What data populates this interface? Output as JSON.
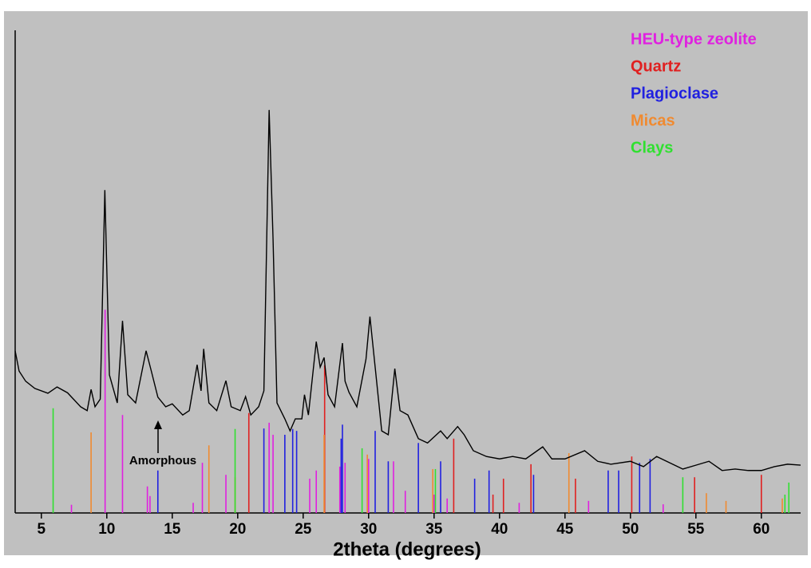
{
  "chart_data": {
    "type": "line",
    "xlabel": "2theta (degrees)",
    "xlim": [
      3,
      63
    ],
    "xticks": [
      5,
      10,
      15,
      20,
      25,
      30,
      35,
      40,
      45,
      50,
      55,
      60
    ],
    "ylim": [
      0,
      100
    ],
    "color": "#000000",
    "legend": "top-right",
    "annotation": "Amorphous",
    "x": [
      3.0,
      3.3,
      3.8,
      4.5,
      5.5,
      6.2,
      7.0,
      8.0,
      8.5,
      8.8,
      9.1,
      9.5,
      9.85,
      10.2,
      10.8,
      11.2,
      11.6,
      12.2,
      13.0,
      13.4,
      13.9,
      14.5,
      15.0,
      15.8,
      16.3,
      16.9,
      17.2,
      17.4,
      17.8,
      18.4,
      19.1,
      19.5,
      20.2,
      20.6,
      21.0,
      21.6,
      22.0,
      22.4,
      22.7,
      23.0,
      23.6,
      24.0,
      24.4,
      24.9,
      25.1,
      25.4,
      26.0,
      26.3,
      26.6,
      26.9,
      27.4,
      28.0,
      28.2,
      28.5,
      29.1,
      29.8,
      30.1,
      30.5,
      31.0,
      31.5,
      32.0,
      32.4,
      33.0,
      33.8,
      34.5,
      35.5,
      36.0,
      36.8,
      37.3,
      38.0,
      39.0,
      40.0,
      41.0,
      42.0,
      43.3,
      44.0,
      45.0,
      46.5,
      47.5,
      48.5,
      50.0,
      51.0,
      52.0,
      53.0,
      54.0,
      55.0,
      56.0,
      57.0,
      58.0,
      59.0,
      60.0,
      61.0,
      62.0,
      63.0
    ],
    "values": [
      33.6,
      29.4,
      27.3,
      25.8,
      24.8,
      26.1,
      24.9,
      22.0,
      21.2,
      25.6,
      22.0,
      23.6,
      66.9,
      28.6,
      22.8,
      39.8,
      24.5,
      22.8,
      33.6,
      29.4,
      24.0,
      22.0,
      22.6,
      20.3,
      21.2,
      30.7,
      25.3,
      34.0,
      22.8,
      21.2,
      27.4,
      22.0,
      21.2,
      24.1,
      20.3,
      22.0,
      25.3,
      83.5,
      56.7,
      22.8,
      19.5,
      17.0,
      19.5,
      19.5,
      24.5,
      20.3,
      35.5,
      30.2,
      32.2,
      24.5,
      22.0,
      35.2,
      27.3,
      25.0,
      22.0,
      31.9,
      40.7,
      30.2,
      17.0,
      16.2,
      29.9,
      21.2,
      20.3,
      15.4,
      14.5,
      17.0,
      15.4,
      17.9,
      16.2,
      12.9,
      11.7,
      11.2,
      11.7,
      11.2,
      13.7,
      11.2,
      11.2,
      12.9,
      10.7,
      10.1,
      10.7,
      9.6,
      11.7,
      10.4,
      9.1,
      9.9,
      10.7,
      8.8,
      9.1,
      8.8,
      8.8,
      9.6,
      10.1,
      9.9
    ],
    "series": [
      {
        "name": "HEU-type zeolite",
        "color": "#e020e0",
        "x": [
          7.3,
          9.87,
          11.2,
          13.1,
          13.3,
          16.6,
          17.3,
          19.1,
          22.4,
          22.7,
          25.5,
          26.0,
          27.8,
          28.2,
          30.0,
          31.9,
          32.8,
          35.0,
          36.0,
          41.5,
          46.8,
          52.5
        ],
        "values": [
          1.7,
          42.1,
          20.3,
          5.5,
          3.5,
          2.1,
          10.4,
          7.9,
          18.7,
          16.2,
          7.1,
          8.8,
          9.6,
          10.4,
          11.2,
          10.7,
          4.6,
          3.8,
          3.0,
          2.1,
          2.5,
          1.8
        ]
      },
      {
        "name": "Quartz",
        "color": "#e02020",
        "x": [
          20.85,
          26.64,
          36.5,
          39.5,
          40.3,
          42.4,
          45.8,
          50.1,
          54.9,
          60.0
        ],
        "values": [
          20.7,
          30.6,
          15.4,
          3.8,
          7.1,
          10.1,
          7.1,
          11.7,
          7.4,
          7.9
        ]
      },
      {
        "name": "Plagioclase",
        "color": "#2020e0",
        "x": [
          13.9,
          22.0,
          23.6,
          24.2,
          24.5,
          27.9,
          28.0,
          30.5,
          31.5,
          33.8,
          35.5,
          38.1,
          39.2,
          42.6,
          48.3,
          49.1,
          50.7,
          51.5
        ],
        "values": [
          8.8,
          17.5,
          16.2,
          17.4,
          17.0,
          15.4,
          18.3,
          17.0,
          10.7,
          14.5,
          10.7,
          7.1,
          8.8,
          7.9,
          8.8,
          8.8,
          10.4,
          11.2
        ]
      },
      {
        "name": "Micas",
        "color": "#f08a30",
        "x": [
          8.8,
          17.8,
          19.8,
          26.6,
          29.9,
          34.9,
          45.3,
          55.8,
          57.3,
          61.6
        ],
        "values": [
          16.7,
          14.0,
          7.4,
          16.2,
          12.1,
          9.1,
          12.4,
          4.1,
          2.5,
          3.0
        ]
      },
      {
        "name": "Clays",
        "color": "#30e030",
        "x": [
          5.9,
          19.8,
          29.5,
          35.1,
          54.0,
          61.8,
          62.1
        ],
        "values": [
          21.7,
          17.4,
          13.4,
          9.1,
          7.4,
          3.8,
          6.3
        ]
      }
    ]
  }
}
